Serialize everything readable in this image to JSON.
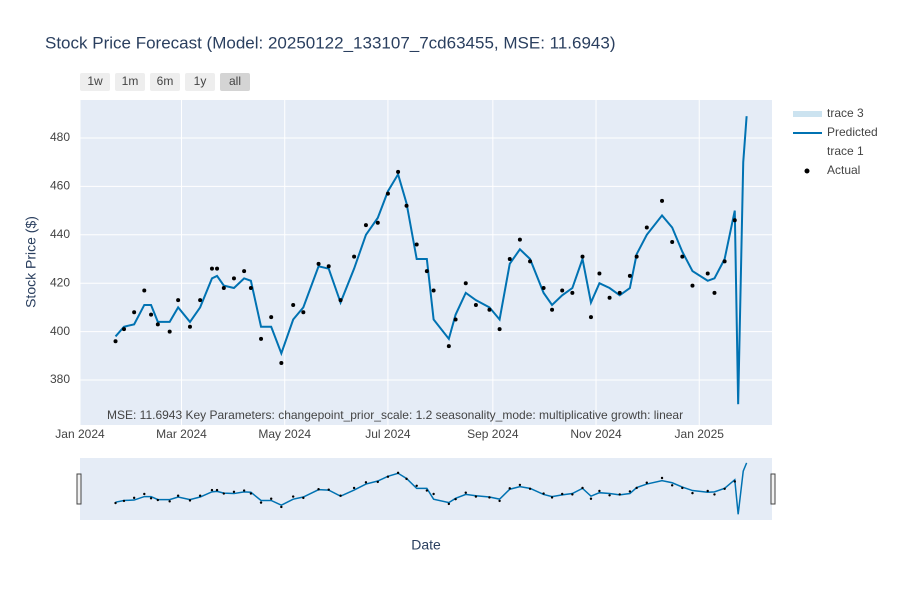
{
  "chart_data": {
    "type": "line",
    "title": "Stock Price Forecast (Model: 20250122_133107_7cd63455, MSE: 11.6943)",
    "x_label": "Date",
    "y_label": "Stock Price ($)",
    "annotation": "MSE: 11.6943 Key Parameters: changepoint_prior_scale: 1.2 seasonality_mode: multiplicative growth: linear",
    "range_buttons": [
      "1w",
      "1m",
      "6m",
      "1y",
      "all"
    ],
    "active_button": "all",
    "grid": true,
    "range_slider": true,
    "xlim": [
      "2024-01-01",
      "2025-02-13"
    ],
    "xticks": [
      {
        "value": "2024-01-01",
        "label": "Jan 2024"
      },
      {
        "value": "2024-03-01",
        "label": "Mar 2024"
      },
      {
        "value": "2024-05-01",
        "label": "May 2024"
      },
      {
        "value": "2024-07-01",
        "label": "Jul 2024"
      },
      {
        "value": "2024-09-01",
        "label": "Sep 2024"
      },
      {
        "value": "2024-11-01",
        "label": "Nov 2024"
      },
      {
        "value": "2025-01-01",
        "label": "Jan 2025"
      }
    ],
    "ylim": [
      361.4,
      495.7
    ],
    "yticks": [
      380,
      400,
      420,
      440,
      460,
      480
    ],
    "x": [
      "2024-01-22",
      "2024-01-27",
      "2024-02-02",
      "2024-02-08",
      "2024-02-12",
      "2024-02-16",
      "2024-02-23",
      "2024-02-28",
      "2024-03-06",
      "2024-03-12",
      "2024-03-19",
      "2024-03-22",
      "2024-03-26",
      "2024-04-01",
      "2024-04-07",
      "2024-04-11",
      "2024-04-17",
      "2024-04-23",
      "2024-04-29",
      "2024-05-06",
      "2024-05-12",
      "2024-05-21",
      "2024-05-27",
      "2024-06-03",
      "2024-06-11",
      "2024-06-18",
      "2024-06-25",
      "2024-07-01",
      "2024-07-07",
      "2024-07-12",
      "2024-07-18",
      "2024-07-24",
      "2024-07-28",
      "2024-08-06",
      "2024-08-10",
      "2024-08-16",
      "2024-08-22",
      "2024-08-30",
      "2024-09-05",
      "2024-09-11",
      "2024-09-17",
      "2024-09-23",
      "2024-10-01",
      "2024-10-06",
      "2024-10-12",
      "2024-10-18",
      "2024-10-24",
      "2024-10-29",
      "2024-11-03",
      "2024-11-09",
      "2024-11-15",
      "2024-11-21",
      "2024-11-25",
      "2024-12-01",
      "2024-12-10",
      "2024-12-16",
      "2024-12-22",
      "2024-12-28",
      "2025-01-06",
      "2025-01-10",
      "2025-01-16",
      "2025-01-22",
      "2025-01-24",
      "2025-01-27",
      "2025-01-29"
    ],
    "legend_only": [
      {
        "name": "trace 3",
        "color": "rgba(0,114,178,0.2)"
      },
      {
        "name": "trace 1",
        "color": "rgba(0,0,0,0)"
      }
    ],
    "series": [
      {
        "name": "Predicted",
        "color": "#0072b2",
        "mode": "line",
        "values": [
          398,
          402,
          403,
          411,
          411,
          404,
          404,
          410,
          404,
          410,
          422,
          423,
          419,
          418,
          422,
          421,
          402,
          402,
          391,
          405,
          410,
          427,
          426,
          412,
          426,
          440,
          447,
          458,
          465,
          453,
          430,
          430,
          405,
          397,
          407,
          416,
          413,
          410,
          405,
          428,
          434,
          430,
          416,
          411,
          415,
          418,
          430,
          412,
          420,
          418,
          415,
          418,
          432,
          440,
          448,
          443,
          433,
          425,
          421,
          422,
          430,
          450,
          370,
          470,
          489
        ]
      },
      {
        "name": "Actual",
        "color": "#000000",
        "mode": "markers",
        "values": [
          396,
          401,
          408,
          417,
          407,
          403,
          400,
          413,
          402,
          413,
          426,
          426,
          418,
          422,
          425,
          418,
          397,
          406,
          387,
          411,
          408,
          428,
          427,
          413,
          431,
          444,
          445,
          457,
          466,
          452,
          436,
          425,
          417,
          394,
          405,
          420,
          411,
          409,
          401,
          430,
          438,
          429,
          418,
          409,
          417,
          416,
          431,
          406,
          424,
          414,
          416,
          423,
          431,
          443,
          454,
          437,
          431,
          419,
          424,
          416,
          429,
          446,
          null,
          null,
          null
        ]
      }
    ]
  }
}
